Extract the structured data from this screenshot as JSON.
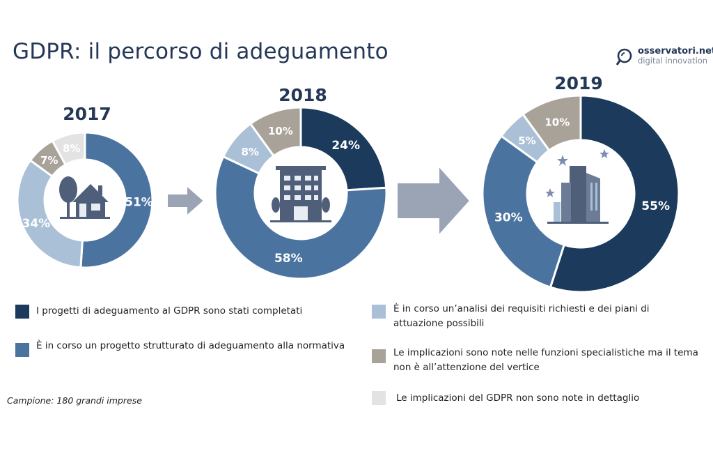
{
  "header": {
    "title": "GDPR: il percorso di adeguamento"
  },
  "logo": {
    "name": "osservatori.net",
    "tagline": "digital innovation"
  },
  "colors": {
    "completed": "#1b3a5c",
    "structured": "#4b73a0",
    "analysis": "#a9c0d7",
    "known_specialist": "#a8a299",
    "not_known": "#e3e3e3",
    "arrow": "#9aa4b4",
    "icon": "#4f5f79"
  },
  "chart_data": [
    {
      "type": "pie",
      "title": "2017",
      "labels": [
        "I progetti di adeguamento al GDPR sono stati completati",
        "È in corso un progetto strutturato di adeguamento alla normativa",
        "È in corso un'analisi dei requisiti richiesti e dei piani di attuazione possibili",
        "Le implicazioni sono note nelle funzioni specialistiche ma il tema non è all'attenzione del vertice",
        "Le implicazioni del GDPR non sono note in dettaglio"
      ],
      "values": [
        0,
        51,
        34,
        7,
        8
      ],
      "value_labels": [
        "",
        "51%",
        "34%",
        "7%",
        "8%"
      ]
    },
    {
      "type": "pie",
      "title": "2018",
      "labels": [
        "I progetti di adeguamento al GDPR sono stati completati",
        "È in corso un progetto strutturato di adeguamento alla normativa",
        "È in corso un'analisi dei requisiti richiesti e dei piani di attuazione possibili",
        "Le implicazioni sono note nelle funzioni specialistiche ma il tema non è all'attenzione del vertice",
        "Le implicazioni del GDPR non sono note in dettaglio"
      ],
      "values": [
        24,
        58,
        8,
        10,
        0
      ],
      "value_labels": [
        "24%",
        "58%",
        "8%",
        "10%",
        ""
      ]
    },
    {
      "type": "pie",
      "title": "2019",
      "labels": [
        "I progetti di adeguamento al GDPR sono stati completati",
        "È in corso un progetto strutturato di adeguamento alla normativa",
        "È in corso un'analisi dei requisiti richiesti e dei piani di attuazione possibili",
        "Le implicazioni sono note nelle funzioni specialistiche ma il tema non è all'attenzione del vertice",
        "Le implicazioni del GDPR non sono note in dettaglio"
      ],
      "values": [
        55,
        30,
        5,
        10,
        0
      ],
      "value_labels": [
        "55%",
        "30%",
        "5%",
        "10%",
        ""
      ]
    }
  ],
  "legend": [
    {
      "label": "I progetti di adeguamento al GDPR sono stati completati"
    },
    {
      "label": "È in corso un progetto strutturato di adeguamento alla normativa"
    },
    {
      "label": "È in corso un’analisi dei requisiti richiesti e dei piani di attuazione possibili"
    },
    {
      "label": "Le implicazioni sono note nelle funzioni specialistiche ma il tema non è all’attenzione del vertice"
    },
    {
      "label": "Le implicazioni del GDPR non sono note in dettaglio"
    }
  ],
  "footer": {
    "sample": "Campione: 180 grandi imprese"
  },
  "icons": [
    "house-icon",
    "building-icon",
    "skyscrapers-icon",
    "arrow-right-icon",
    "magnifier-logo-icon"
  ]
}
